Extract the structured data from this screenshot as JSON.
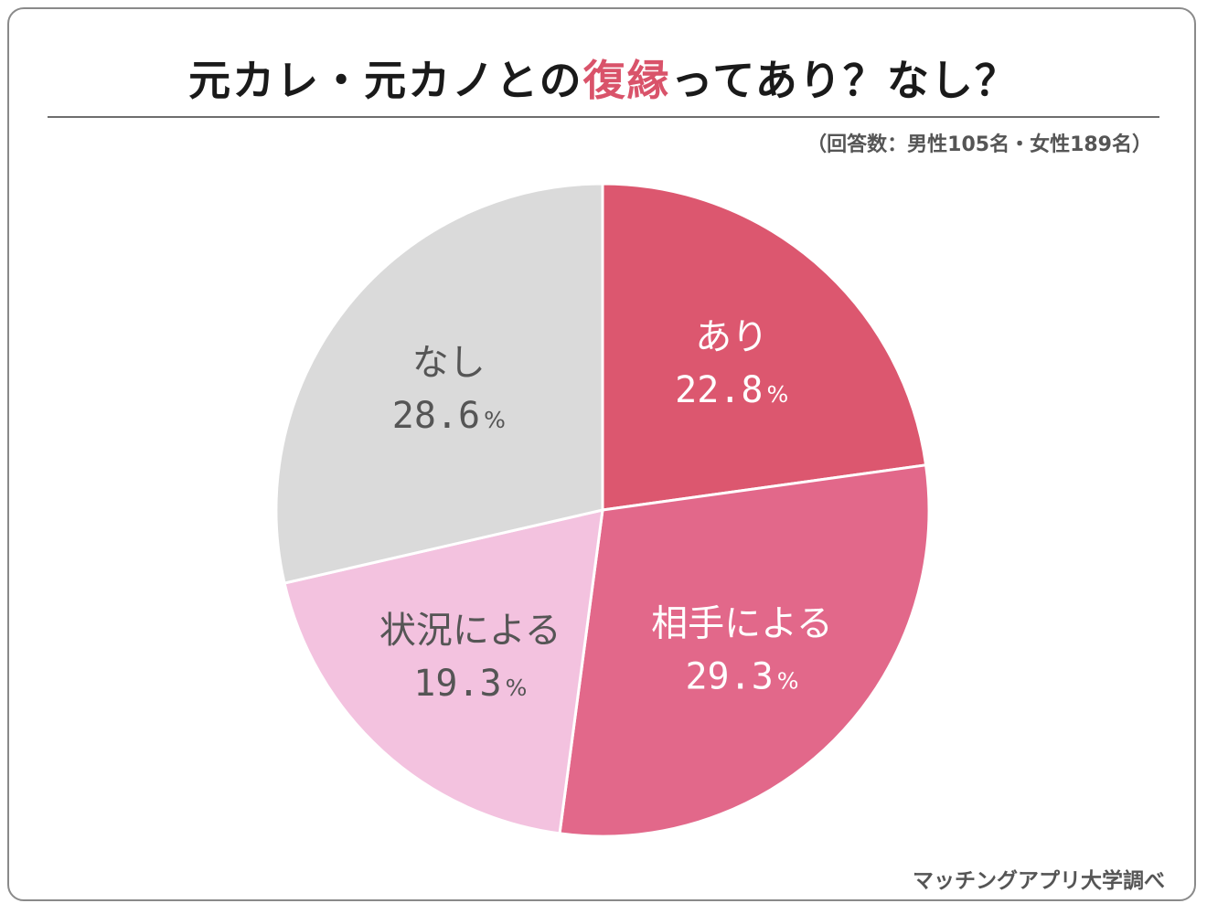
{
  "title": {
    "before": "元カレ・元カノとの",
    "highlight": "復縁",
    "after": "ってあり？なし？"
  },
  "note": "（回答数：男性105名・女性189名）",
  "source": "マッチングアプリ大学調べ",
  "colors": {
    "accent": "#d9536a",
    "frame": "#8a8a8a",
    "rule": "#6e6e6e"
  },
  "chart_data": {
    "type": "pie",
    "unit": "%",
    "start_angle_deg": 0,
    "direction": "clockwise",
    "slices": [
      {
        "label": "あり",
        "value": 22.8,
        "color": "#dc576f",
        "text_color": "#ffffff"
      },
      {
        "label": "相手による",
        "value": 29.3,
        "color": "#e2688a",
        "text_color": "#ffffff"
      },
      {
        "label": "状況による",
        "value": 19.3,
        "color": "#f3c2df",
        "text_color": "#555555"
      },
      {
        "label": "なし",
        "value": 28.6,
        "color": "#dadada",
        "text_color": "#555555"
      }
    ]
  }
}
